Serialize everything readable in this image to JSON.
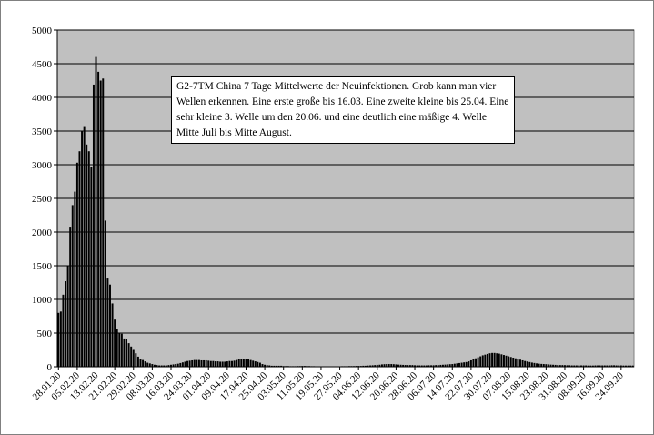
{
  "chart_data": {
    "type": "bar",
    "annotation": "G2-7TM China 7 Tage Mittelwerte der Neuinfektionen. Grob kann man vier Wellen erkennen. Eine erste große bis 16.03. Eine zweite kleine bis 25.04. Eine sehr kleine 3. Welle um den 20.06. und eine deutlich eine mäßige 4. Welle Mitte Juli bis Mitte August.",
    "categories": [
      "28.01.20",
      null,
      null,
      null,
      null,
      null,
      null,
      null,
      "05.02.20",
      null,
      null,
      null,
      null,
      null,
      null,
      null,
      "13.02.20",
      null,
      null,
      null,
      null,
      null,
      null,
      null,
      "21.02.20",
      null,
      null,
      null,
      null,
      null,
      null,
      null,
      "29.02.20",
      null,
      null,
      null,
      null,
      null,
      null,
      null,
      "08.03.20",
      null,
      null,
      null,
      null,
      null,
      null,
      null,
      "16.03.20",
      null,
      null,
      null,
      null,
      null,
      null,
      null,
      "24.03.20",
      null,
      null,
      null,
      null,
      null,
      null,
      null,
      "01.04.20",
      null,
      null,
      null,
      null,
      null,
      null,
      null,
      "09.04.20",
      null,
      null,
      null,
      null,
      null,
      null,
      null,
      "17.04.20",
      null,
      null,
      null,
      null,
      null,
      null,
      null,
      "25.04.20",
      null,
      null,
      null,
      null,
      null,
      null,
      null,
      "03.05.20",
      null,
      null,
      null,
      null,
      null,
      null,
      null,
      "11.05.20",
      null,
      null,
      null,
      null,
      null,
      null,
      null,
      "19.05.20",
      null,
      null,
      null,
      null,
      null,
      null,
      null,
      "27.05.20",
      null,
      null,
      null,
      null,
      null,
      null,
      null,
      "04.06.20",
      null,
      null,
      null,
      null,
      null,
      null,
      null,
      "12.06.20",
      null,
      null,
      null,
      null,
      null,
      null,
      null,
      "20.06.20",
      null,
      null,
      null,
      null,
      null,
      null,
      null,
      "28.06.20",
      null,
      null,
      null,
      null,
      null,
      null,
      null,
      "06.07.20",
      null,
      null,
      null,
      null,
      null,
      null,
      null,
      "14.07.20",
      null,
      null,
      null,
      null,
      null,
      null,
      null,
      "22.07.20",
      null,
      null,
      null,
      null,
      null,
      null,
      null,
      "30.07.20",
      null,
      null,
      null,
      null,
      null,
      null,
      null,
      "07.08.20",
      null,
      null,
      null,
      null,
      null,
      null,
      null,
      "15.08.20",
      null,
      null,
      null,
      null,
      null,
      null,
      null,
      "23.08.20",
      null,
      null,
      null,
      null,
      null,
      null,
      null,
      "31.08.20",
      null,
      null,
      null,
      null,
      null,
      null,
      null,
      "08.09.20",
      null,
      null,
      null,
      null,
      null,
      null,
      null,
      "16.09.20",
      null,
      null,
      null,
      null,
      null,
      null,
      null,
      "24.09.20",
      null,
      null,
      null,
      null,
      null
    ],
    "values": [
      800,
      820,
      1070,
      1270,
      1500,
      2080,
      2400,
      2600,
      3030,
      3200,
      3500,
      3560,
      3300,
      3200,
      2960,
      4190,
      4600,
      4380,
      4250,
      4280,
      2170,
      1310,
      1220,
      940,
      700,
      560,
      500,
      490,
      420,
      410,
      350,
      300,
      250,
      200,
      150,
      120,
      100,
      80,
      60,
      50,
      40,
      30,
      25,
      20,
      20,
      20,
      20,
      25,
      30,
      35,
      40,
      45,
      55,
      65,
      75,
      85,
      90,
      95,
      100,
      100,
      100,
      95,
      95,
      95,
      90,
      85,
      85,
      80,
      80,
      75,
      75,
      75,
      80,
      85,
      85,
      90,
      100,
      110,
      110,
      110,
      120,
      110,
      100,
      90,
      80,
      70,
      60,
      40,
      30,
      25,
      20,
      15,
      15,
      15,
      15,
      15,
      10,
      10,
      10,
      8,
      8,
      8,
      10,
      10,
      12,
      12,
      12,
      10,
      8,
      8,
      6,
      6,
      6,
      6,
      6,
      5,
      5,
      5,
      6,
      6,
      6,
      8,
      8,
      8,
      10,
      10,
      10,
      12,
      12,
      12,
      15,
      15,
      18,
      20,
      22,
      25,
      28,
      30,
      35,
      38,
      40,
      40,
      40,
      38,
      35,
      32,
      30,
      28,
      26,
      25,
      25,
      25,
      22,
      20,
      20,
      20,
      20,
      20,
      22,
      22,
      22,
      25,
      25,
      28,
      30,
      32,
      35,
      38,
      40,
      45,
      50,
      55,
      60,
      65,
      70,
      80,
      95,
      110,
      125,
      140,
      155,
      170,
      180,
      190,
      200,
      205,
      205,
      200,
      195,
      185,
      175,
      165,
      155,
      145,
      135,
      125,
      115,
      105,
      95,
      85,
      78,
      70,
      62,
      56,
      50,
      45,
      42,
      40,
      38,
      35,
      32,
      30,
      28,
      26,
      25,
      25,
      24,
      22,
      22,
      20,
      20,
      20,
      20,
      20,
      20,
      20,
      18,
      18,
      18,
      20,
      20,
      20,
      20,
      20,
      20,
      20,
      22,
      22,
      20,
      20,
      20,
      18,
      18,
      18,
      18,
      18
    ],
    "color": "#000000",
    "background": "#c0c0c0",
    "ylim": [
      0,
      5000
    ],
    "yticks": [
      0,
      500,
      1000,
      1500,
      2000,
      2500,
      3000,
      3500,
      4000,
      4500,
      5000
    ],
    "grid": true
  }
}
